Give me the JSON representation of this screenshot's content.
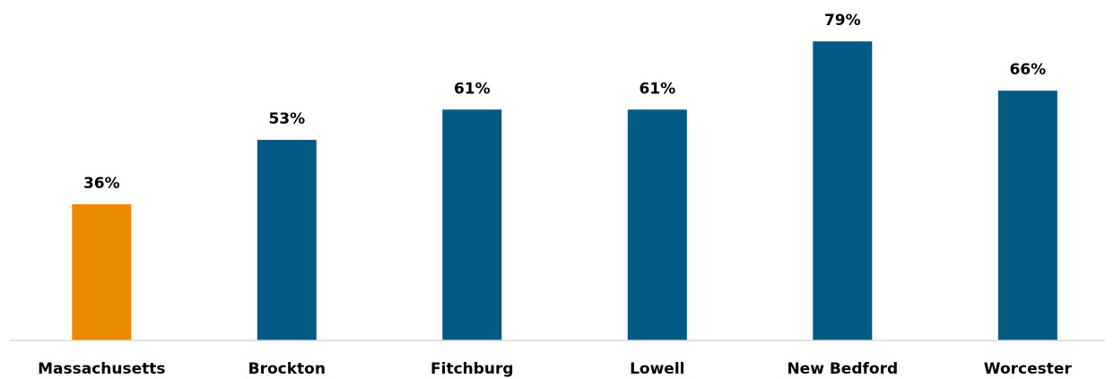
{
  "chart_data": {
    "type": "bar",
    "categories": [
      "Massachusetts",
      "Brockton",
      "Fitchburg",
      "Lowell",
      "New Bedford",
      "Worcester"
    ],
    "values": [
      36,
      53,
      61,
      61,
      79,
      66
    ],
    "value_labels": [
      "36%",
      "53%",
      "61%",
      "61%",
      "79%",
      "66%"
    ],
    "ylim": [
      0,
      80
    ],
    "grid": false,
    "legend": "none"
  },
  "colors": {
    "highlight": "#E98A00",
    "bar": "#005A84",
    "axis": "#D9D9D9"
  }
}
